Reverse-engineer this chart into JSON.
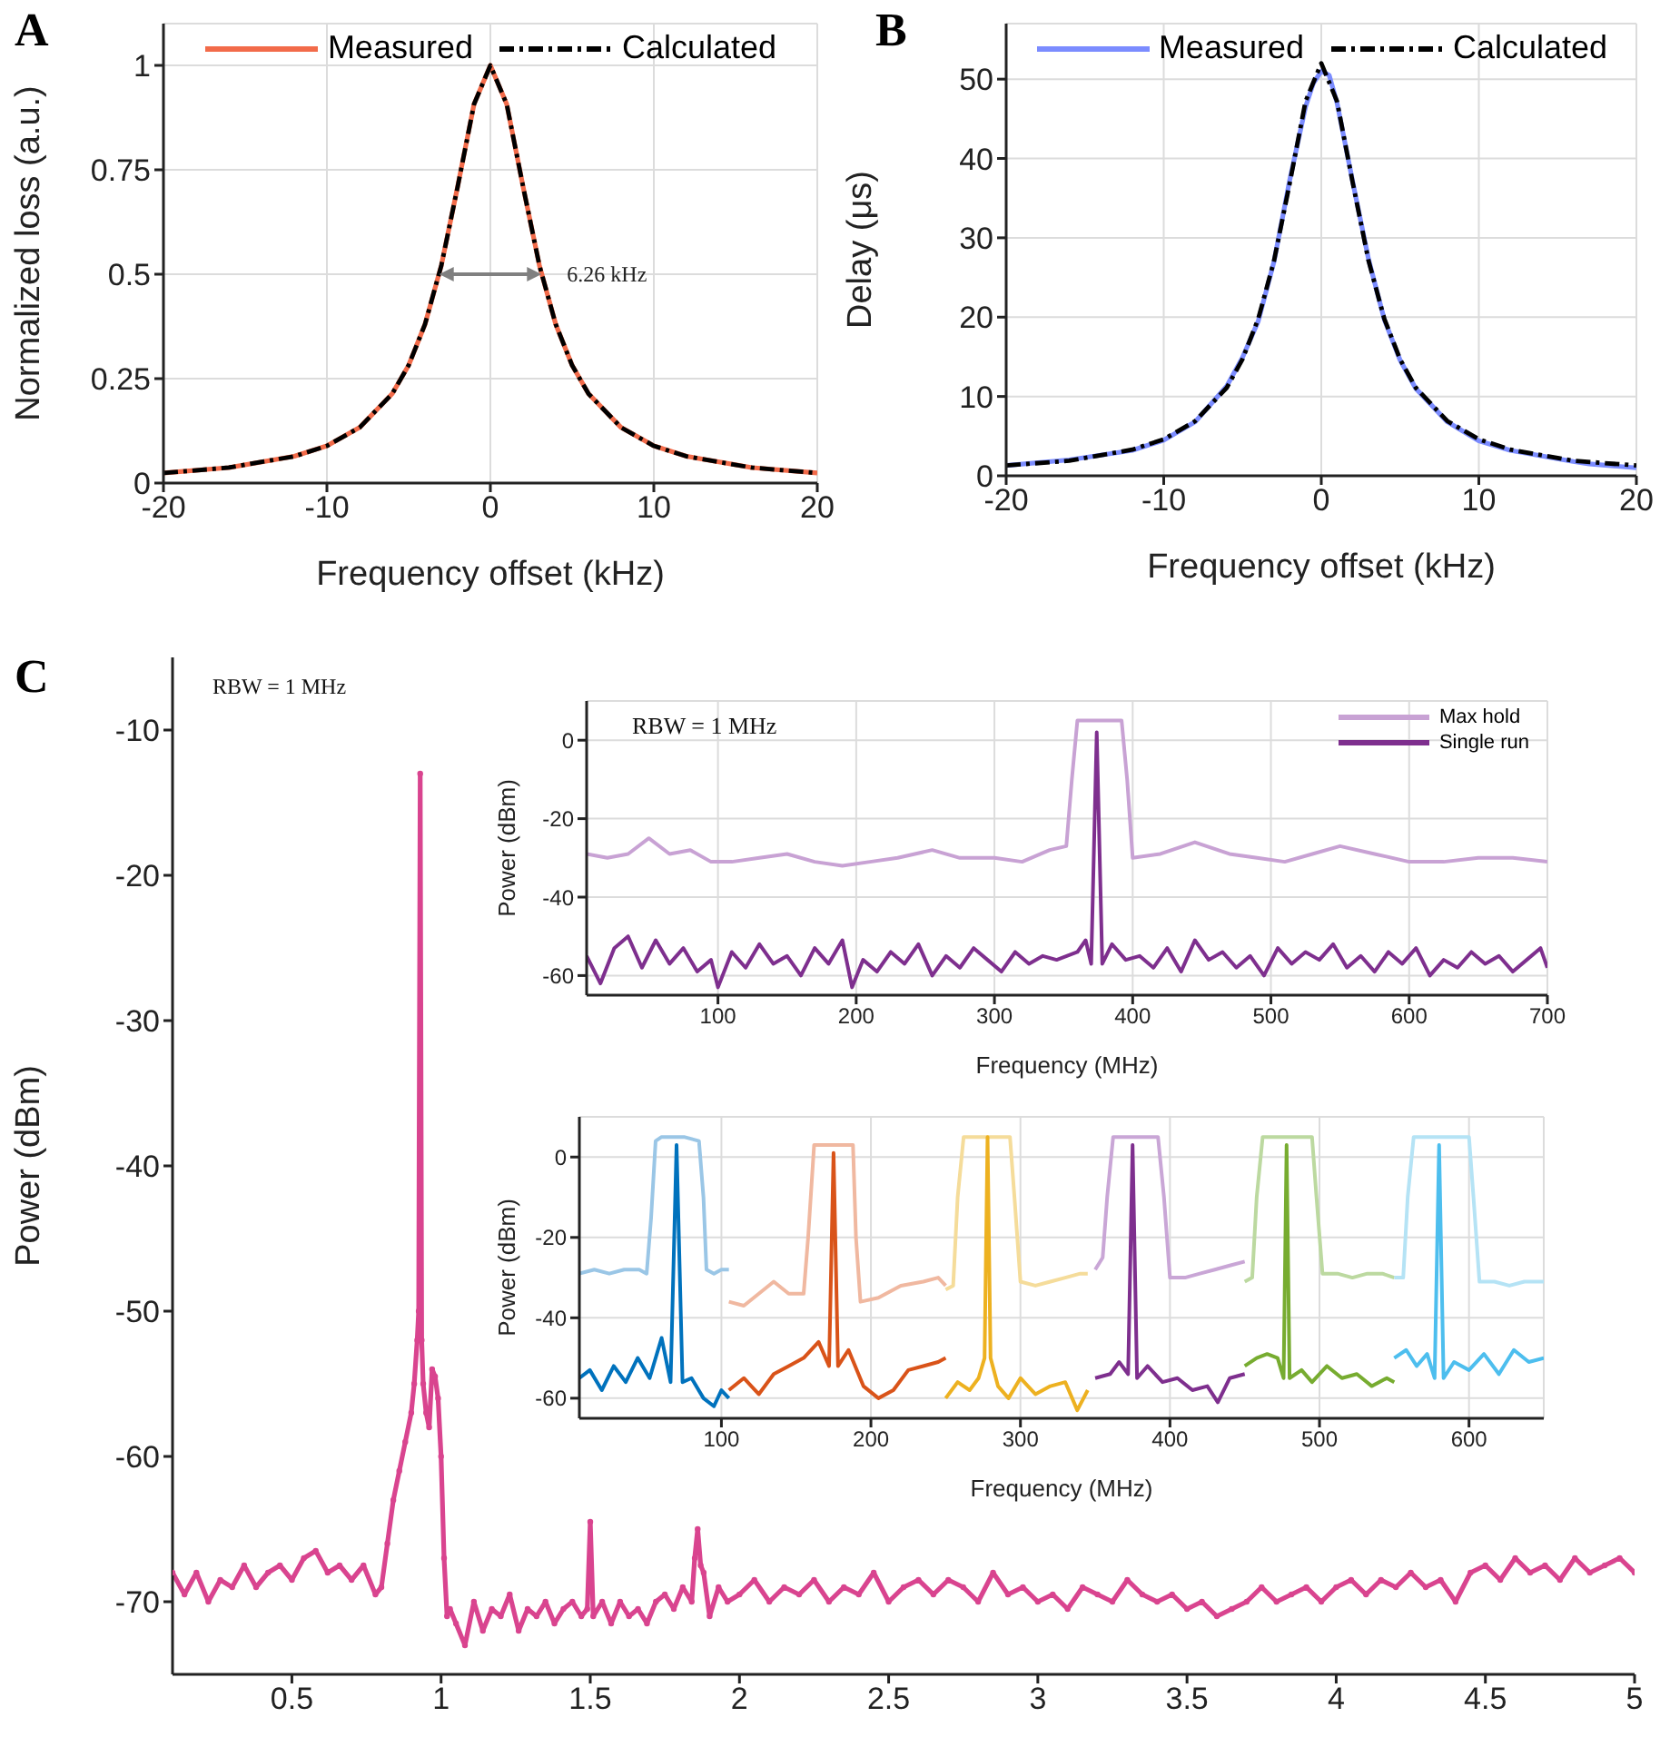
{
  "chart_data": [
    {
      "type": "line",
      "title": "A",
      "xlabel": "Frequency offset (kHz)",
      "ylabel": "Normalized loss (a.u.)",
      "xlim": [
        -20,
        20
      ],
      "xticks": [
        -20,
        -10,
        0,
        10,
        20
      ],
      "ylim": [
        0,
        1.1
      ],
      "yticks": [
        0,
        0.25,
        0.5,
        0.75,
        1
      ],
      "grid": true,
      "legend": "top",
      "annotations": [
        {
          "text": "6.26 kHz",
          "x": 3.13,
          "y": 0.5
        }
      ],
      "series": [
        {
          "name": "Measured",
          "color": "#f26b4a",
          "x": [
            -20,
            -16,
            -12,
            -10,
            -8,
            -6,
            -5,
            -4,
            -3,
            -2,
            -1,
            0,
            1,
            2,
            3,
            4,
            5,
            6,
            8,
            10,
            12,
            16,
            20
          ],
          "values": [
            0.024,
            0.037,
            0.064,
            0.089,
            0.133,
            0.214,
            0.282,
            0.38,
            0.521,
            0.71,
            0.907,
            1,
            0.907,
            0.71,
            0.521,
            0.38,
            0.282,
            0.214,
            0.133,
            0.089,
            0.064,
            0.037,
            0.024
          ]
        },
        {
          "name": "Calculated",
          "color": "#000000",
          "line_style": "dashed",
          "x": [
            -20,
            -16,
            -12,
            -10,
            -8,
            -6,
            -5,
            -4,
            -3,
            -2,
            -1,
            0,
            1,
            2,
            3,
            4,
            5,
            6,
            8,
            10,
            12,
            16,
            20
          ],
          "values": [
            0.024,
            0.037,
            0.064,
            0.089,
            0.133,
            0.214,
            0.282,
            0.38,
            0.521,
            0.71,
            0.907,
            1,
            0.907,
            0.71,
            0.521,
            0.38,
            0.282,
            0.214,
            0.133,
            0.089,
            0.064,
            0.037,
            0.024
          ]
        }
      ]
    },
    {
      "type": "line",
      "title": "B",
      "xlabel": "Frequency offset (kHz)",
      "ylabel": "Delay (μs)",
      "xlim": [
        -20,
        20
      ],
      "xticks": [
        -20,
        -10,
        0,
        10,
        20
      ],
      "ylim": [
        0,
        57
      ],
      "yticks": [
        0,
        10,
        20,
        30,
        40,
        50
      ],
      "grid": true,
      "legend": "top",
      "series": [
        {
          "name": "Measured",
          "color": "#7b8cff",
          "x": [
            -20,
            -16,
            -12,
            -10,
            -8,
            -6,
            -5,
            -4,
            -3,
            -2,
            -1,
            -0.5,
            0,
            0.5,
            1,
            2,
            3,
            4,
            5,
            6,
            8,
            10,
            12,
            16,
            17,
            20
          ],
          "values": [
            1.3,
            2.0,
            3.2,
            4.5,
            6.8,
            11.3,
            14.9,
            19.5,
            27.0,
            37.3,
            46.5,
            49.5,
            51,
            50.5,
            47,
            37,
            27.3,
            19.7,
            14.6,
            11.0,
            6.8,
            4.4,
            3.2,
            1.8,
            1.5,
            1.0
          ]
        },
        {
          "name": "Calculated",
          "color": "#000000",
          "line_style": "dashed",
          "x": [
            -20,
            -16,
            -12,
            -10,
            -8,
            -6,
            -5,
            -4,
            -3,
            -2,
            -1,
            0,
            1,
            2,
            3,
            4,
            5,
            6,
            8,
            10,
            12,
            16,
            20
          ],
          "values": [
            1.3,
            1.9,
            3.3,
            4.6,
            6.9,
            11.1,
            14.7,
            19.8,
            27.1,
            36.9,
            47.2,
            52,
            47.2,
            36.9,
            27.1,
            19.8,
            14.7,
            11.1,
            6.9,
            4.6,
            3.3,
            1.9,
            1.3
          ]
        }
      ]
    },
    {
      "type": "line",
      "title": "C",
      "ylabel": "Power (dBm)",
      "xlim": [
        0.1,
        5
      ],
      "xticks": [
        0.5,
        1,
        1.5,
        2,
        2.5,
        3,
        3.5,
        4,
        4.5,
        5
      ],
      "ylim": [
        -75,
        -5
      ],
      "yticks": [
        -70,
        -60,
        -50,
        -40,
        -30,
        -20,
        -10
      ],
      "marker": "circle",
      "annotations": [
        "RBW = 1 MHz"
      ],
      "series": [
        {
          "color": "#d9448f",
          "x": [
            0.1,
            0.14,
            0.18,
            0.22,
            0.26,
            0.3,
            0.34,
            0.38,
            0.42,
            0.46,
            0.5,
            0.54,
            0.58,
            0.62,
            0.66,
            0.7,
            0.74,
            0.78,
            0.8,
            0.82,
            0.84,
            0.86,
            0.88,
            0.9,
            0.91,
            0.92,
            0.925,
            0.93,
            0.935,
            0.94,
            0.95,
            0.96,
            0.97,
            0.98,
            0.99,
            1.0,
            1.01,
            1.02,
            1.03,
            1.05,
            1.08,
            1.11,
            1.14,
            1.17,
            1.2,
            1.23,
            1.26,
            1.29,
            1.32,
            1.35,
            1.38,
            1.41,
            1.44,
            1.47,
            1.49,
            1.5,
            1.51,
            1.54,
            1.57,
            1.6,
            1.63,
            1.66,
            1.69,
            1.72,
            1.75,
            1.78,
            1.81,
            1.84,
            1.85,
            1.86,
            1.87,
            1.88,
            1.9,
            1.93,
            1.96,
            2.0,
            2.05,
            2.1,
            2.15,
            2.2,
            2.25,
            2.3,
            2.35,
            2.4,
            2.45,
            2.5,
            2.55,
            2.6,
            2.65,
            2.7,
            2.75,
            2.8,
            2.85,
            2.9,
            2.95,
            3.0,
            3.05,
            3.1,
            3.15,
            3.2,
            3.25,
            3.3,
            3.35,
            3.4,
            3.45,
            3.5,
            3.55,
            3.6,
            3.65,
            3.7,
            3.75,
            3.8,
            3.85,
            3.9,
            3.95,
            4.0,
            4.05,
            4.1,
            4.15,
            4.2,
            4.25,
            4.3,
            4.35,
            4.4,
            4.45,
            4.5,
            4.55,
            4.6,
            4.65,
            4.7,
            4.75,
            4.8,
            4.85,
            4.9,
            4.95,
            5.0
          ],
          "values": [
            -68,
            -69.5,
            -68,
            -70,
            -68.5,
            -69,
            -67.5,
            -69,
            -68,
            -67.5,
            -68.5,
            -67,
            -66.5,
            -68,
            -67.5,
            -68.5,
            -67.5,
            -69.5,
            -69,
            -66,
            -63,
            -61,
            -59,
            -57,
            -55,
            -52,
            -50,
            -13,
            -52,
            -55,
            -57,
            -58,
            -54,
            -54.5,
            -56,
            -60,
            -67,
            -71,
            -70.5,
            -71.5,
            -73,
            -70,
            -72,
            -70.5,
            -71,
            -69.5,
            -72,
            -70.5,
            -71,
            -70,
            -71.5,
            -70.5,
            -70,
            -71,
            -70.5,
            -64.5,
            -71,
            -70,
            -71.5,
            -70,
            -71,
            -70.5,
            -71.5,
            -70,
            -69.5,
            -70.5,
            -69,
            -70,
            -67,
            -65,
            -67.5,
            -68,
            -71,
            -69,
            -70,
            -69.5,
            -68.5,
            -70,
            -69,
            -69.5,
            -68.5,
            -70,
            -69,
            -69.5,
            -68,
            -70,
            -69,
            -68.5,
            -69.5,
            -68.5,
            -69,
            -70,
            -68,
            -69.5,
            -69,
            -70,
            -69.5,
            -70.5,
            -69,
            -69.5,
            -70,
            -68.5,
            -69.5,
            -70,
            -69.5,
            -70.5,
            -70,
            -71,
            -70.5,
            -70,
            -69,
            -70,
            -69.5,
            -69,
            -70,
            -69,
            -68.5,
            -69.5,
            -68.5,
            -69,
            -68,
            -69,
            -68.5,
            -70,
            -68,
            -67.5,
            -68.5,
            -67,
            -68,
            -67.5,
            -68.5,
            -67,
            -68,
            -67.5,
            -67,
            -68
          ]
        }
      ]
    },
    {
      "type": "line",
      "xlabel": "Frequency (MHz)",
      "ylabel": "Power (dBm)",
      "xlim": [
        5,
        700
      ],
      "xticks": [
        100,
        200,
        300,
        400,
        500,
        600,
        700
      ],
      "ylim": [
        -65,
        10
      ],
      "yticks": [
        -60,
        -40,
        -20,
        0
      ],
      "grid": true,
      "legend": "top right",
      "annotations": [
        "RBW = 1 MHz"
      ],
      "series": [
        {
          "name": "Max hold",
          "color": "#c8a2d4",
          "x": [
            5,
            20,
            35,
            50,
            65,
            80,
            95,
            110,
            130,
            150,
            170,
            190,
            210,
            230,
            255,
            275,
            300,
            320,
            340,
            352,
            356,
            360,
            380,
            392,
            396,
            400,
            420,
            445,
            470,
            490,
            510,
            530,
            550,
            575,
            600,
            625,
            650,
            675,
            700
          ],
          "values": [
            -29,
            -30,
            -29,
            -25,
            -29,
            -28,
            -31,
            -31,
            -30,
            -29,
            -31,
            -32,
            -31,
            -30,
            -28,
            -30,
            -30,
            -31,
            -28,
            -27,
            -10,
            5,
            5,
            5,
            -10,
            -30,
            -29,
            -26,
            -29,
            -30,
            -31,
            -29,
            -27,
            -29,
            -31,
            -31,
            -30,
            -30,
            -31
          ]
        },
        {
          "name": "Single run",
          "color": "#7e2f8e",
          "x": [
            5,
            15,
            25,
            35,
            45,
            55,
            65,
            75,
            85,
            95,
            100,
            110,
            120,
            130,
            140,
            150,
            160,
            170,
            180,
            190,
            197,
            205,
            215,
            225,
            235,
            245,
            255,
            265,
            275,
            285,
            295,
            305,
            315,
            325,
            335,
            345,
            360,
            366,
            370,
            374,
            378,
            385,
            395,
            405,
            415,
            425,
            435,
            445,
            455,
            465,
            475,
            485,
            495,
            505,
            515,
            525,
            535,
            545,
            555,
            565,
            575,
            585,
            595,
            605,
            615,
            625,
            635,
            645,
            655,
            665,
            675,
            685,
            695,
            700
          ],
          "values": [
            -55,
            -62,
            -53,
            -50,
            -58,
            -51,
            -57,
            -53,
            -59,
            -56,
            -63,
            -54,
            -58,
            -52,
            -57,
            -55,
            -60,
            -53,
            -57,
            -51,
            -63,
            -56,
            -59,
            -54,
            -57,
            -52,
            -60,
            -55,
            -58,
            -53,
            -56,
            -59,
            -54,
            -57,
            -55,
            -56,
            -54,
            -51,
            -57,
            2,
            -57,
            -52,
            -56,
            -55,
            -58,
            -53,
            -59,
            -51,
            -56,
            -54,
            -58,
            -55,
            -60,
            -53,
            -57,
            -54,
            -56,
            -52,
            -58,
            -55,
            -59,
            -54,
            -57,
            -53,
            -60,
            -56,
            -58,
            -54,
            -57,
            -55,
            -59,
            -56,
            -53,
            -58
          ]
        }
      ]
    },
    {
      "type": "line",
      "xlabel": "Frequency (MHz)",
      "ylabel": "Power (dBm)",
      "xlim": [
        5,
        650
      ],
      "xticks": [
        100,
        200,
        300,
        400,
        500,
        600
      ],
      "ylim": [
        -65,
        10
      ],
      "yticks": [
        -60,
        -40,
        -20,
        0
      ],
      "grid": true,
      "series": [
        {
          "color": "#9ac6e6",
          "x": [
            5,
            15,
            25,
            35,
            45,
            50,
            53,
            56,
            60,
            75,
            85,
            88,
            90,
            95,
            100,
            105
          ],
          "values": [
            -29,
            -28,
            -29,
            -28,
            -28,
            -29,
            -15,
            4,
            5,
            5,
            4,
            -10,
            -28,
            -29,
            -28,
            -28
          ]
        },
        {
          "color": "#0072bd",
          "x": [
            5,
            12,
            20,
            28,
            36,
            44,
            52,
            60,
            66,
            70,
            74,
            80,
            88,
            95,
            100,
            105
          ],
          "values": [
            -55,
            -53,
            -58,
            -52,
            -56,
            -50,
            -55,
            -45,
            -56,
            3,
            -56,
            -55,
            -60,
            -62,
            -58,
            -60
          ]
        },
        {
          "color": "#f0b8a0",
          "x": [
            105,
            115,
            125,
            135,
            145,
            155,
            158,
            162,
            175,
            188,
            190,
            193,
            205,
            220,
            235,
            245,
            250
          ],
          "values": [
            -36,
            -37,
            -34,
            -31,
            -34,
            -34,
            -20,
            3,
            3,
            3,
            -20,
            -36,
            -35,
            -32,
            -31,
            -30,
            -32
          ]
        },
        {
          "color": "#d95319",
          "x": [
            105,
            115,
            125,
            135,
            145,
            155,
            165,
            172,
            175,
            178,
            185,
            195,
            205,
            215,
            225,
            235,
            245,
            250
          ],
          "values": [
            -58,
            -55,
            -59,
            -54,
            -52,
            -50,
            -46,
            -52,
            1,
            -52,
            -48,
            -57,
            -60,
            -58,
            -53,
            -52,
            -51,
            -50
          ]
        },
        {
          "color": "#f5dc9a",
          "x": [
            250,
            255,
            258,
            262,
            280,
            293,
            296,
            300,
            310,
            320,
            330,
            340,
            345
          ],
          "values": [
            -33,
            -32,
            -10,
            5,
            5,
            5,
            -10,
            -31,
            -32,
            -31,
            -30,
            -29,
            -29
          ]
        },
        {
          "color": "#edb120",
          "x": [
            250,
            258,
            266,
            272,
            276,
            278,
            280,
            285,
            292,
            300,
            310,
            320,
            330,
            338,
            345
          ],
          "values": [
            -60,
            -56,
            -58,
            -55,
            -50,
            5,
            -50,
            -57,
            -60,
            -55,
            -59,
            -57,
            -56,
            -63,
            -58
          ]
        },
        {
          "color": "#c9a6d6",
          "x": [
            350,
            355,
            358,
            362,
            380,
            392,
            396,
            400,
            410,
            420,
            430,
            440,
            450
          ],
          "values": [
            -28,
            -25,
            -10,
            5,
            5,
            5,
            -10,
            -30,
            -30,
            -29,
            -28,
            -27,
            -26
          ]
        },
        {
          "color": "#7e2f8e",
          "x": [
            350,
            360,
            366,
            372,
            375,
            378,
            385,
            395,
            405,
            415,
            425,
            432,
            440,
            450
          ],
          "values": [
            -55,
            -54,
            -51,
            -54,
            3,
            -55,
            -52,
            -56,
            -55,
            -58,
            -57,
            -61,
            -55,
            -54
          ]
        },
        {
          "color": "#bcd9a0",
          "x": [
            450,
            455,
            458,
            462,
            480,
            495,
            498,
            502,
            512,
            522,
            532,
            542,
            550
          ],
          "values": [
            -31,
            -30,
            -10,
            5,
            5,
            5,
            -10,
            -29,
            -29,
            -30,
            -29,
            -29,
            -30
          ]
        },
        {
          "color": "#77ac30",
          "x": [
            450,
            458,
            465,
            472,
            476,
            478,
            480,
            488,
            495,
            505,
            515,
            525,
            535,
            545,
            550
          ],
          "values": [
            -52,
            -50,
            -49,
            -50,
            -55,
            3,
            -55,
            -53,
            -56,
            -52,
            -55,
            -54,
            -57,
            -55,
            -56
          ]
        },
        {
          "color": "#b5e3f5",
          "x": [
            550,
            556,
            559,
            563,
            585,
            600,
            603,
            607,
            617,
            627,
            637,
            650
          ],
          "values": [
            -30,
            -30,
            -10,
            5,
            5,
            5,
            -10,
            -31,
            -31,
            -32,
            -31,
            -31
          ]
        },
        {
          "color": "#4dbeee",
          "x": [
            550,
            558,
            565,
            572,
            577,
            580,
            583,
            590,
            600,
            610,
            620,
            630,
            640,
            650
          ],
          "values": [
            -50,
            -48,
            -52,
            -49,
            -55,
            3,
            -55,
            -51,
            -53,
            -49,
            -54,
            -48,
            -51,
            -50
          ]
        }
      ]
    }
  ]
}
